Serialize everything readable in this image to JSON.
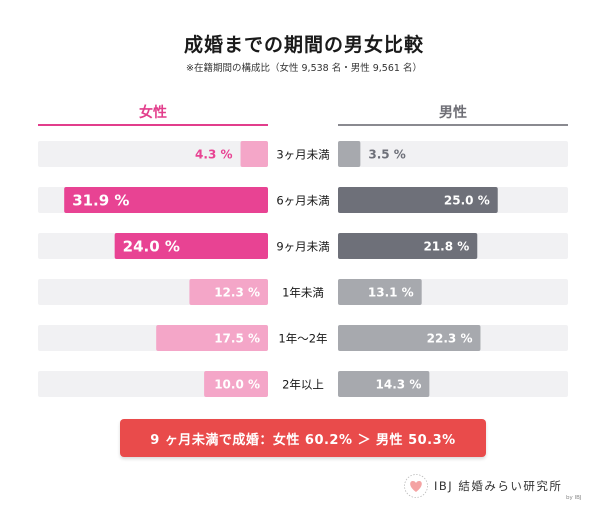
{
  "title": "成婚までの期間の男女比較",
  "subtitle": "※在籍期間の構成比（女性 9,538 名・男性 9,561 名）",
  "columns": {
    "female": "女性",
    "male": "男性"
  },
  "colors": {
    "female_dark": "#e84393",
    "female_light": "#f4a6c8",
    "male_dark": "#6e7079",
    "male_light": "#a7a9ae",
    "track": "#f1f1f3",
    "banner": "#e94b4b"
  },
  "chart_data": {
    "type": "bar",
    "title": "成婚までの期間の男女比較",
    "orientation": "horizontal-butterfly",
    "xlim": [
      0,
      36
    ],
    "categories": [
      "3ヶ月未満",
      "6ヶ月未満",
      "9ヶ月未満",
      "1年未満",
      "1年〜2年",
      "2年以上"
    ],
    "series": [
      {
        "name": "女性",
        "values": [
          4.3,
          31.9,
          24.0,
          12.3,
          17.5,
          10.0
        ],
        "labels": [
          "4.3 %",
          "31.9 %",
          "24.0 %",
          "12.3 %",
          "17.5 %",
          "10.0 %"
        ]
      },
      {
        "name": "男性",
        "values": [
          3.5,
          25.0,
          21.8,
          13.1,
          22.3,
          14.3
        ],
        "labels": [
          "3.5 %",
          "25.0 %",
          "21.8 %",
          "13.1 %",
          "22.3 %",
          "14.3 %"
        ]
      }
    ],
    "emphasized_categories": [
      "6ヶ月未満",
      "9ヶ月未満"
    ]
  },
  "conclusion": "9 ヶ月未満で成婚：女性 60.2% ＞ 男性 50.3%",
  "logo": {
    "text": "IBJ 結婚みらい研究所",
    "by": "by IBJ"
  }
}
